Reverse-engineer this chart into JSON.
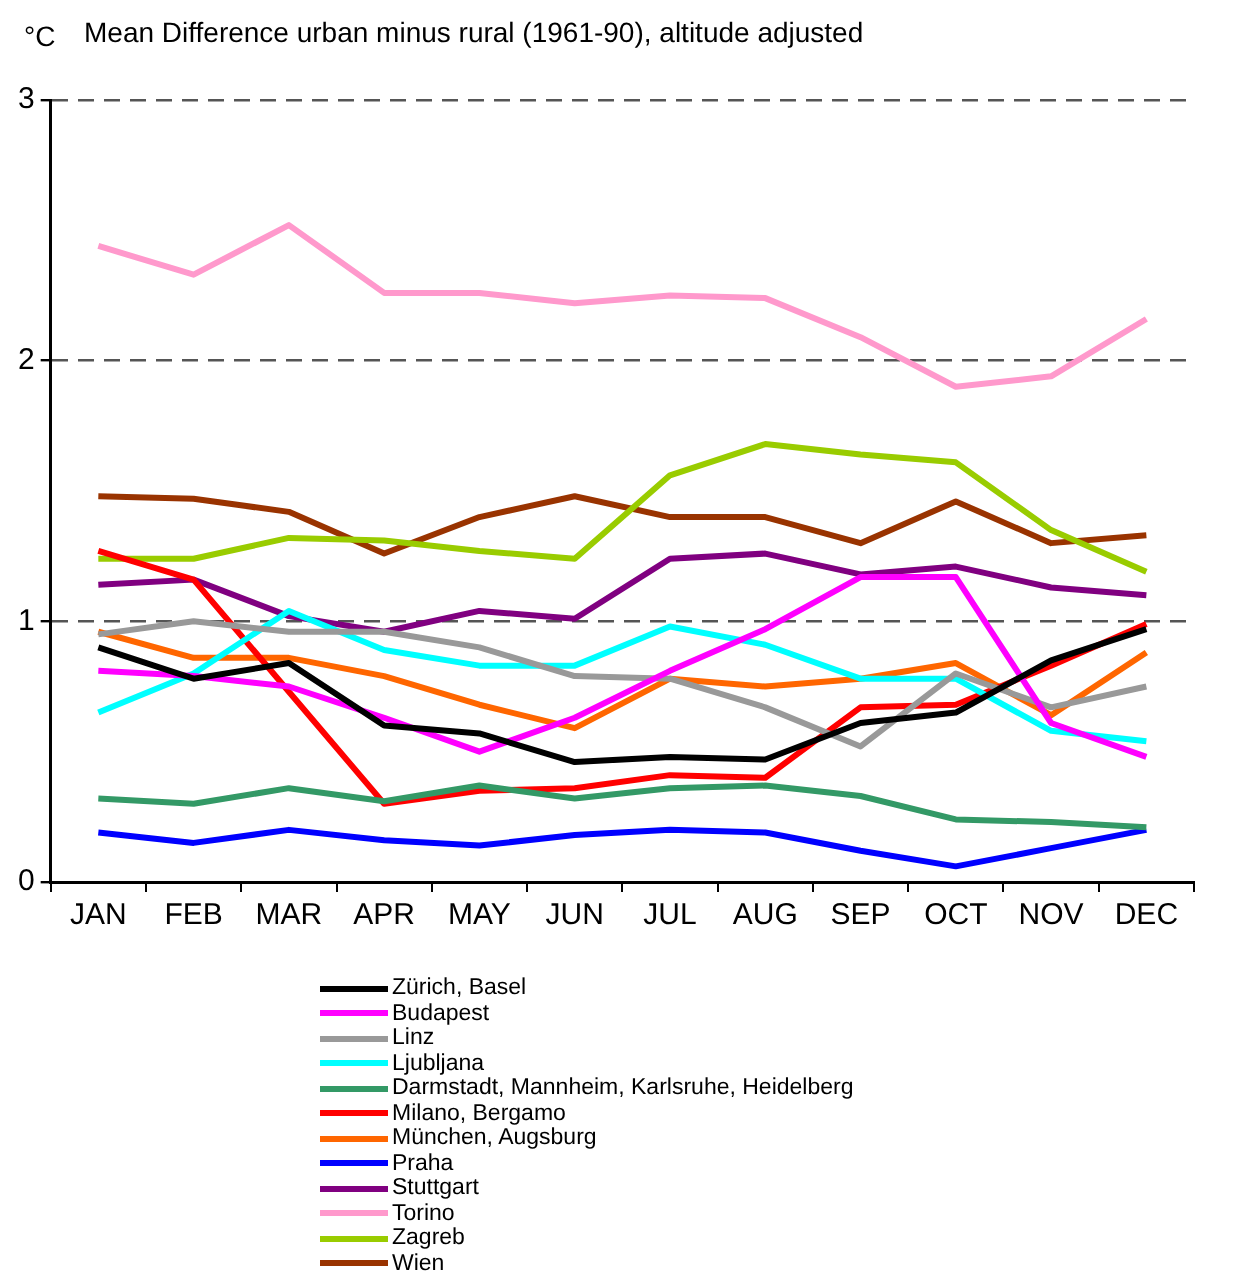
{
  "chart_data": {
    "type": "line",
    "title": "Mean Difference urban minus rural (1961-90), altitude adjusted",
    "ylabel": "°C",
    "categories": [
      "JAN",
      "FEB",
      "MAR",
      "APR",
      "MAY",
      "JUN",
      "JUL",
      "AUG",
      "SEP",
      "OCT",
      "NOV",
      "DEC"
    ],
    "ylim": [
      0,
      3
    ],
    "yticks": [
      0,
      1,
      2,
      3
    ],
    "grid": "y",
    "legend": "bottom",
    "marker": "none",
    "line_style": "solid",
    "series": [
      {
        "name": "Zürich, Basel",
        "color": "#000000",
        "values": [
          0.9,
          0.78,
          0.84,
          0.6,
          0.57,
          0.46,
          0.48,
          0.47,
          0.61,
          0.65,
          0.85,
          0.97
        ]
      },
      {
        "name": "Budapest",
        "color": "#ff00ff",
        "values": [
          0.81,
          0.79,
          0.75,
          0.63,
          0.5,
          0.63,
          0.81,
          0.97,
          1.17,
          1.17,
          0.61,
          0.48
        ]
      },
      {
        "name": "Linz",
        "color": "#999999",
        "values": [
          0.95,
          1.0,
          0.96,
          0.96,
          0.9,
          0.79,
          0.78,
          0.67,
          0.52,
          0.8,
          0.67,
          0.75
        ]
      },
      {
        "name": "Ljubljana",
        "color": "#00ffff",
        "values": [
          0.65,
          0.8,
          1.04,
          0.89,
          0.83,
          0.83,
          0.98,
          0.91,
          0.78,
          0.78,
          0.58,
          0.54
        ]
      },
      {
        "name": "Darmstadt, Mannheim, Karlsruhe, Heidelberg",
        "color": "#339966",
        "values": [
          0.32,
          0.3,
          0.36,
          0.31,
          0.37,
          0.32,
          0.36,
          0.37,
          0.33,
          0.24,
          0.23,
          0.21
        ]
      },
      {
        "name": "Milano, Bergamo",
        "color": "#ff0000",
        "values": [
          1.27,
          1.16,
          0.73,
          0.3,
          0.35,
          0.36,
          0.41,
          0.4,
          0.67,
          0.68,
          0.83,
          0.99
        ]
      },
      {
        "name": "München, Augsburg",
        "color": "#ff6600",
        "values": [
          0.96,
          0.86,
          0.86,
          0.79,
          0.68,
          0.59,
          0.78,
          0.75,
          0.78,
          0.84,
          0.64,
          0.88
        ]
      },
      {
        "name": "Praha",
        "color": "#0000ff",
        "values": [
          0.19,
          0.15,
          0.2,
          0.16,
          0.14,
          0.18,
          0.2,
          0.19,
          0.12,
          0.06,
          0.13,
          0.2
        ]
      },
      {
        "name": "Stuttgart",
        "color": "#800080",
        "values": [
          1.14,
          1.16,
          1.02,
          0.96,
          1.04,
          1.01,
          1.24,
          1.26,
          1.18,
          1.21,
          1.13,
          1.1
        ]
      },
      {
        "name": "Torino",
        "color": "#ff99cc",
        "values": [
          2.44,
          2.33,
          2.52,
          2.26,
          2.26,
          2.22,
          2.25,
          2.24,
          2.09,
          1.9,
          1.94,
          2.16
        ]
      },
      {
        "name": "Zagreb",
        "color": "#99cc00",
        "values": [
          1.24,
          1.24,
          1.32,
          1.31,
          1.27,
          1.24,
          1.56,
          1.68,
          1.64,
          1.61,
          1.35,
          1.19
        ]
      },
      {
        "name": "Wien",
        "color": "#993300",
        "values": [
          1.48,
          1.47,
          1.42,
          1.26,
          1.4,
          1.48,
          1.4,
          1.4,
          1.3,
          1.46,
          1.3,
          1.33
        ]
      }
    ]
  }
}
